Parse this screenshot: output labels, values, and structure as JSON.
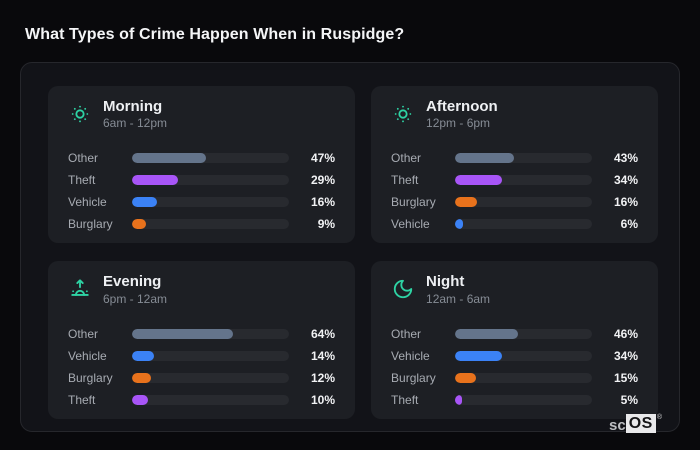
{
  "page": {
    "title": "What Types of Crime Happen When in Ruspidge?"
  },
  "colors": {
    "accent_teal": "#2ed3a4",
    "category_colors": {
      "Other": "#64748b",
      "Theft": "#a855f7",
      "Vehicle": "#3b82f6",
      "Burglary": "#e8721c"
    }
  },
  "logo": {
    "prefix": "sc",
    "suffix": "OS",
    "registered": "®"
  },
  "chart_data": [
    {
      "type": "bar",
      "title": "Morning",
      "subtitle": "6am - 12pm",
      "icon": "sun-dim-icon",
      "unit": "%",
      "xlim": [
        0,
        100
      ],
      "categories": [
        "Other",
        "Theft",
        "Vehicle",
        "Burglary"
      ],
      "values": [
        47,
        29,
        16,
        9
      ]
    },
    {
      "type": "bar",
      "title": "Afternoon",
      "subtitle": "12pm - 6pm",
      "icon": "sun-dim-icon",
      "unit": "%",
      "xlim": [
        0,
        100
      ],
      "categories": [
        "Other",
        "Theft",
        "Burglary",
        "Vehicle"
      ],
      "values": [
        43,
        34,
        16,
        6
      ]
    },
    {
      "type": "bar",
      "title": "Evening",
      "subtitle": "6pm - 12am",
      "icon": "sunrise-icon",
      "unit": "%",
      "xlim": [
        0,
        100
      ],
      "categories": [
        "Other",
        "Vehicle",
        "Burglary",
        "Theft"
      ],
      "values": [
        64,
        14,
        12,
        10
      ]
    },
    {
      "type": "bar",
      "title": "Night",
      "subtitle": "12am - 6am",
      "icon": "moon-icon",
      "unit": "%",
      "xlim": [
        0,
        100
      ],
      "categories": [
        "Other",
        "Vehicle",
        "Burglary",
        "Theft"
      ],
      "values": [
        46,
        34,
        15,
        5
      ]
    }
  ]
}
